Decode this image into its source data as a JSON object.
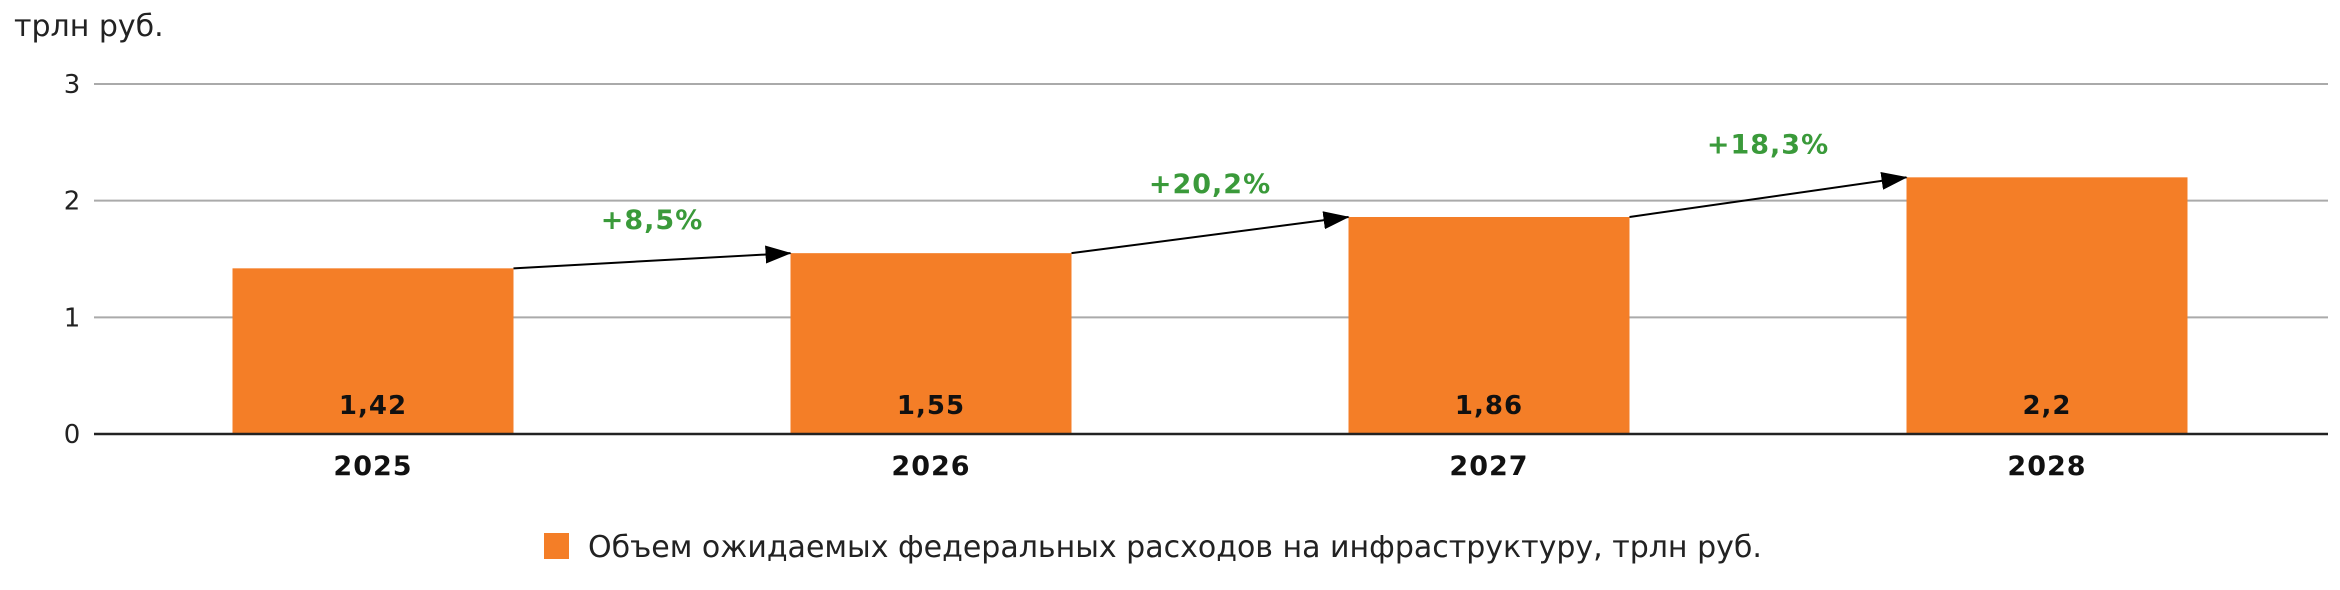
{
  "chart_data": {
    "type": "bar",
    "unit_label": "трлн руб.",
    "categories": [
      "2025",
      "2026",
      "2027",
      "2028"
    ],
    "series": [
      {
        "name": "Объем ожидаемых федеральных расходов на инфраструктуру, трлн руб.",
        "values": [
          1.42,
          1.55,
          1.86,
          2.2
        ],
        "value_labels": [
          "1,42",
          "1,55",
          "1,86",
          "2,2"
        ],
        "color": "#f47e27"
      }
    ],
    "ylim": [
      0,
      3
    ],
    "yticks": [
      0,
      1,
      2,
      3
    ],
    "ytick_labels": [
      "0",
      "1",
      "2",
      "3"
    ],
    "grid": true,
    "legend_position": "bottom",
    "growth_annotations": [
      {
        "from": "2025",
        "to": "2026",
        "label": "+8,5%"
      },
      {
        "from": "2026",
        "to": "2027",
        "label": "+20,2%"
      },
      {
        "from": "2027",
        "to": "2028",
        "label": "+18,3%"
      }
    ],
    "annotation_color": "#3a9a3a",
    "axis_color": "#222222",
    "grid_color": "#aaaaaa"
  }
}
